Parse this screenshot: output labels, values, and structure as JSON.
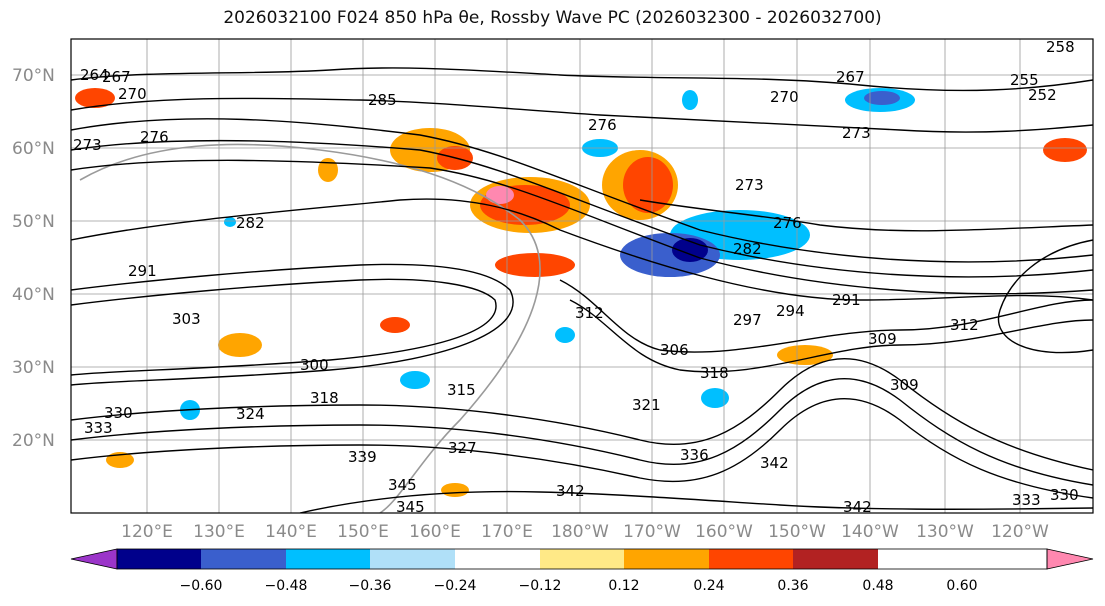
{
  "title": "2026032100 F024 850 hPa θe, Rossby Wave PC (2026032300 - 2026032700)",
  "lat_labels": [
    "70°N",
    "60°N",
    "50°N",
    "40°N",
    "30°N",
    "20°N"
  ],
  "lon_labels": [
    "120°E",
    "130°E",
    "140°E",
    "150°E",
    "160°E",
    "170°E",
    "180°W",
    "170°W",
    "160°W",
    "150°W",
    "140°W",
    "130°W",
    "120°W"
  ],
  "contour_labels": [
    "264",
    "267",
    "270",
    "273",
    "276",
    "285",
    "270",
    "273",
    "267",
    "276",
    "273",
    "276",
    "282",
    "282",
    "291",
    "294",
    "297",
    "291",
    "309",
    "306",
    "303",
    "312",
    "315",
    "318",
    "321",
    "324",
    "327",
    "330",
    "333",
    "336",
    "339",
    "342",
    "345",
    "300",
    "309",
    "312",
    "318",
    "258",
    "255",
    "252",
    "333",
    "330",
    "345",
    "342",
    "342"
  ],
  "colorbar": {
    "ticks": [
      "−0.60",
      "−0.48",
      "−0.36",
      "−0.24",
      "−0.12",
      "0.12",
      "0.24",
      "0.36",
      "0.48",
      "0.60"
    ],
    "colors": [
      "#9b35c9",
      "#00008b",
      "#3a5fcd",
      "#00bfff",
      "#b0e0f8",
      "#ffffff",
      "#ffe987",
      "#ffa500",
      "#ff4500",
      "#b22222",
      "#ff88b0"
    ],
    "low_extend_color": "#9b35c9",
    "high_extend_color": "#ff88b0"
  }
}
